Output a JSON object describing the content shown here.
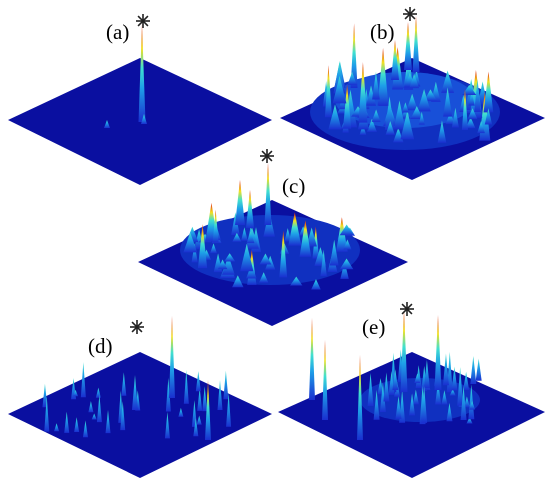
{
  "panels": [
    {
      "label": "(a)",
      "star": true
    },
    {
      "label": "(b)",
      "star": true
    },
    {
      "label": "(c)",
      "star": true
    },
    {
      "label": "(d)",
      "star": true
    },
    {
      "label": "(e)",
      "star": true
    }
  ],
  "colors": {
    "floor": "#0a0fa0",
    "floor_edge": "#0a0c8c",
    "low": "#1a2fd0",
    "mid_low": "#1ea0e8",
    "mid": "#40e0d0",
    "high": "#f2e020",
    "peak": "#e02010"
  },
  "marker": "asterisk"
}
